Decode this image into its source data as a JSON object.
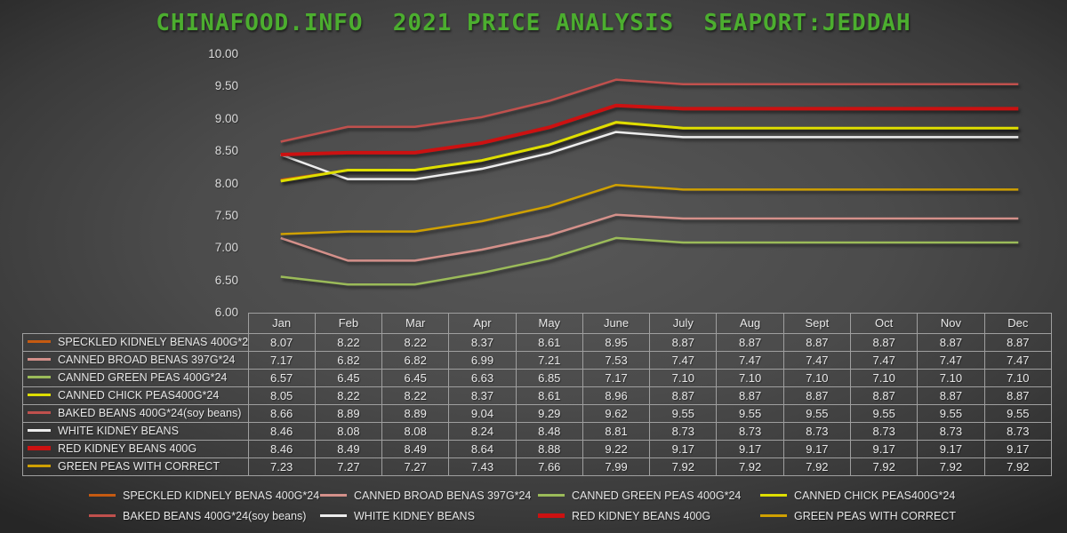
{
  "title": "CHINAFOOD.INFO  2021 PRICE ANALYSIS  SEAPORT:JEDDAH",
  "title_color": "#4CAE2F",
  "chart_data": {
    "type": "line",
    "title": "CHINAFOOD.INFO  2021 PRICE ANALYSIS  SEAPORT:JEDDAH",
    "categories": [
      "Jan",
      "Feb",
      "Mar",
      "Apr",
      "May",
      "June",
      "July",
      "Aug",
      "Sept",
      "Oct",
      "Nov",
      "Dec"
    ],
    "y_axis": {
      "min": 6.0,
      "max": 10.0,
      "step": 0.5,
      "tick_labels": [
        "10.00",
        "9.50",
        "9.00",
        "8.50",
        "8.00",
        "7.50",
        "7.00",
        "6.50",
        "6.00"
      ]
    },
    "grid": false,
    "legend_position": "bottom",
    "data_table_attached": true,
    "value_format": "0.00",
    "series": [
      {
        "name": "SPECKLED KIDNELY BENAS 400G*24",
        "color": "#C55A11",
        "line_width": 2.5,
        "values": [
          8.07,
          8.22,
          8.22,
          8.37,
          8.61,
          8.95,
          8.87,
          8.87,
          8.87,
          8.87,
          8.87,
          8.87
        ]
      },
      {
        "name": "CANNED BROAD BENAS 397G*24",
        "color": "#D4908A",
        "line_width": 2.5,
        "values": [
          7.17,
          6.82,
          6.82,
          6.99,
          7.21,
          7.53,
          7.47,
          7.47,
          7.47,
          7.47,
          7.47,
          7.47
        ]
      },
      {
        "name": "CANNED GREEN PEAS 400G*24",
        "color": "#9BBB59",
        "line_width": 2.5,
        "values": [
          6.57,
          6.45,
          6.45,
          6.63,
          6.85,
          7.17,
          7.1,
          7.1,
          7.1,
          7.1,
          7.1,
          7.1
        ]
      },
      {
        "name": "CANNED CHICK PEAS400G*24",
        "color": "#DEDE00",
        "line_width": 3,
        "values": [
          8.05,
          8.22,
          8.22,
          8.37,
          8.61,
          8.96,
          8.87,
          8.87,
          8.87,
          8.87,
          8.87,
          8.87
        ]
      },
      {
        "name": "BAKED BEANS 400G*24(soy beans)",
        "color": "#C0504D",
        "line_width": 2.5,
        "values": [
          8.66,
          8.89,
          8.89,
          9.04,
          9.29,
          9.62,
          9.55,
          9.55,
          9.55,
          9.55,
          9.55,
          9.55
        ]
      },
      {
        "name": "WHITE KIDNEY BEANS",
        "color": "#EDEDED",
        "line_width": 2.5,
        "values": [
          8.46,
          8.08,
          8.08,
          8.24,
          8.48,
          8.81,
          8.73,
          8.73,
          8.73,
          8.73,
          8.73,
          8.73
        ]
      },
      {
        "name": "RED KIDNEY BEANS 400G",
        "color": "#CC1111",
        "line_width": 4,
        "values": [
          8.46,
          8.49,
          8.49,
          8.64,
          8.88,
          9.22,
          9.17,
          9.17,
          9.17,
          9.17,
          9.17,
          9.17
        ]
      },
      {
        "name": "GREEN PEAS WITH CORRECT",
        "color": "#CFA000",
        "line_width": 2.5,
        "values": [
          7.23,
          7.27,
          7.27,
          7.43,
          7.66,
          7.99,
          7.92,
          7.92,
          7.92,
          7.92,
          7.92,
          7.92
        ]
      }
    ]
  }
}
